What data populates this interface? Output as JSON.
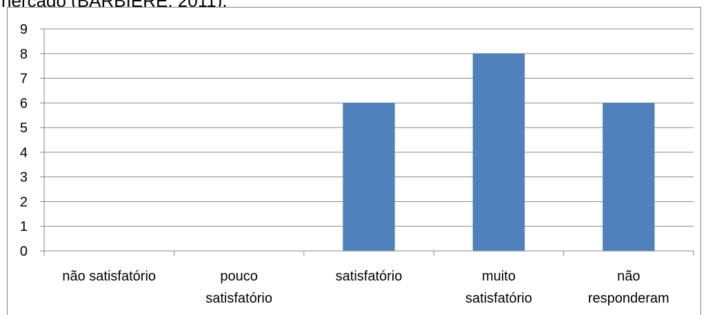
{
  "header": {
    "clipped_text": "nercado (BARBIERE, 2011)."
  },
  "chart_data": {
    "type": "bar",
    "title": "",
    "xlabel": "",
    "ylabel": "",
    "categories": [
      [
        "não satisfatório"
      ],
      [
        "pouco",
        "satisfatório"
      ],
      [
        "satisfatório"
      ],
      [
        "muito",
        "satisfatório"
      ],
      [
        "não",
        "responderam"
      ]
    ],
    "values": [
      0,
      0,
      6,
      8,
      6
    ],
    "ylim": [
      0,
      9
    ],
    "yticks": [
      0,
      1,
      2,
      3,
      4,
      5,
      6,
      7,
      8,
      9
    ],
    "grid": true,
    "legend": "none",
    "bar_color": "#4F81BD",
    "grid_color": "#868686"
  }
}
